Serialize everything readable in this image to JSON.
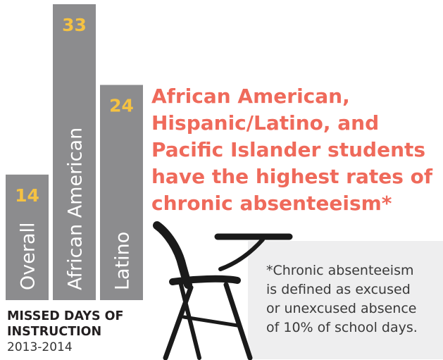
{
  "chart_data": {
    "type": "bar",
    "categories": [
      "Overall",
      "African American",
      "Latino"
    ],
    "values": [
      14,
      33,
      24
    ],
    "title": "",
    "xlabel": "",
    "ylabel": "",
    "ylim": [
      0,
      33
    ],
    "grid": false,
    "legend": "none"
  },
  "caption": {
    "line1": "MISSED DAYS OF",
    "line2": "INSTRUCTION",
    "year": "2013-2014"
  },
  "headline": {
    "lines": [
      "African American,",
      "Hispanic/Latino, and",
      "Pacific Islander students",
      "have the highest rates of",
      "chronic absenteeism*"
    ]
  },
  "footnote": {
    "lines": [
      "*Chronic absenteeism",
      "is defined as excused",
      "or unexcused absence",
      "of 10% of school days."
    ]
  },
  "colors": {
    "bar": "#8c8c8e",
    "value_label": "#f5c242",
    "headline": "#ef6a5b",
    "note_bg": "#eeeeef",
    "chair": "#1a1a1a"
  },
  "icons": [
    "school-desk-chair-icon"
  ]
}
